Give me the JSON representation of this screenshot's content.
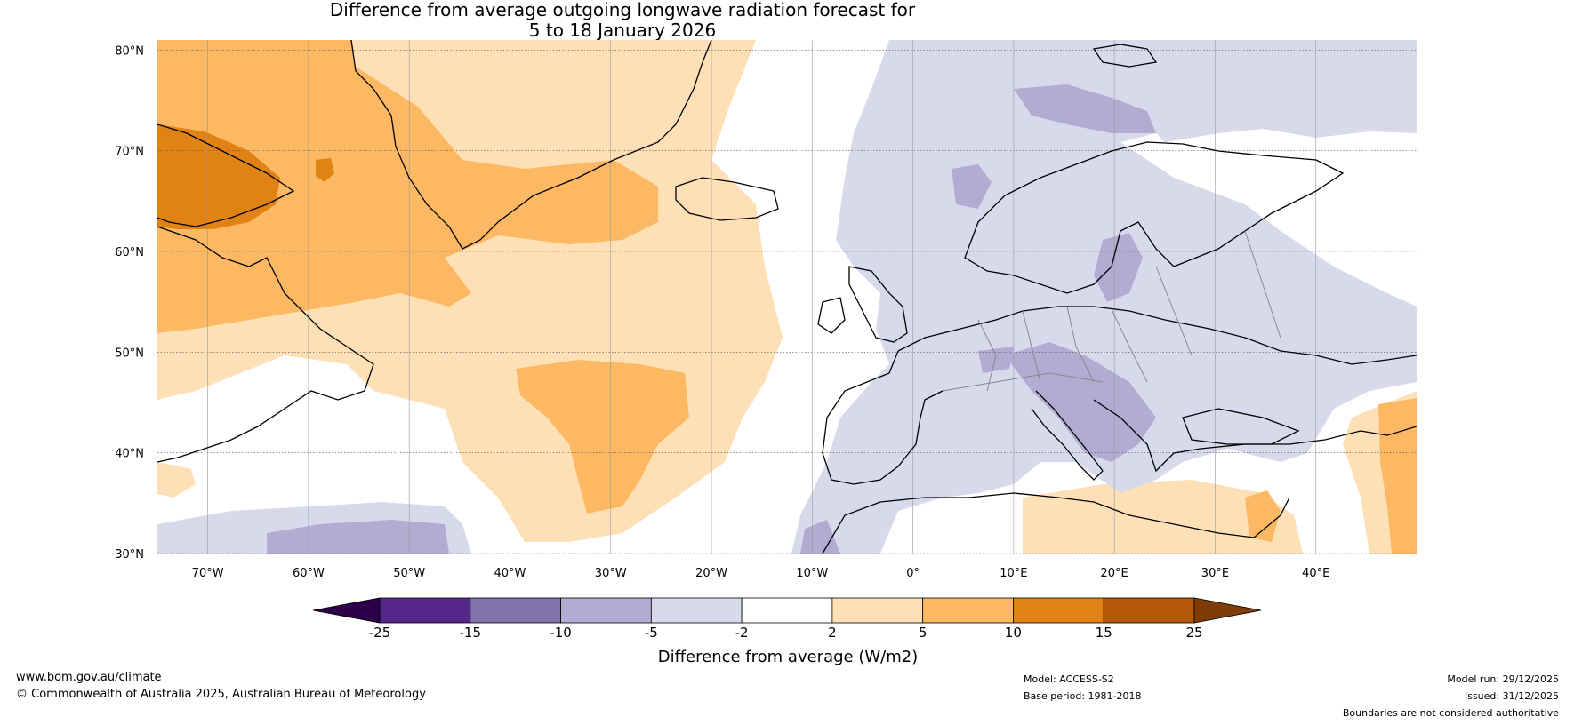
{
  "title": {
    "line1": "Difference from average outgoing longwave radiation forecast for",
    "line2": "5 to 18 January 2026"
  },
  "axes": {
    "lat_labels": [
      "80°N",
      "70°N",
      "60°N",
      "50°N",
      "40°N",
      "30°N"
    ],
    "lon_labels": [
      "70°W",
      "60°W",
      "50°W",
      "40°W",
      "30°W",
      "20°W",
      "10°W",
      "0°",
      "10°E",
      "20°E",
      "30°E",
      "40°E"
    ],
    "lat_values": [
      80,
      70,
      60,
      50,
      40,
      30
    ],
    "lon_values": [
      -70,
      -60,
      -50,
      -40,
      -30,
      -20,
      -10,
      0,
      10,
      20,
      30,
      40
    ],
    "lon_range": [
      -75,
      50
    ],
    "lat_range": [
      30,
      81
    ]
  },
  "legend": {
    "title": "Difference from average (W/m2)",
    "tick_labels": [
      "-25",
      "-15",
      "-10",
      "-5",
      "-2",
      "2",
      "5",
      "10",
      "15",
      "25"
    ],
    "bins": [
      {
        "range": "< -25",
        "color": "#2d004b"
      },
      {
        "range": "-25 to -15",
        "color": "#542788"
      },
      {
        "range": "-15 to -10",
        "color": "#8073ac"
      },
      {
        "range": "-10 to -5",
        "color": "#b2abd2"
      },
      {
        "range": "-5 to -2",
        "color": "#d8daeb"
      },
      {
        "range": "-2 to 2",
        "color": "#ffffff"
      },
      {
        "range": "2 to 5",
        "color": "#fee0b6"
      },
      {
        "range": "5 to 10",
        "color": "#fdb863"
      },
      {
        "range": "10 to 15",
        "color": "#e08214"
      },
      {
        "range": "15 to 25",
        "color": "#b35806"
      },
      {
        "range": "> 25",
        "color": "#7f3b08"
      }
    ]
  },
  "footer": {
    "website": "www.bom.gov.au/climate",
    "copyright": "© Commonwealth of Australia 2025, Australian Bureau of Meteorology",
    "model": "Model: ACCESS-S2",
    "base_period": "Base period: 1981-2018",
    "model_run": "Model run: 29/12/2025",
    "issued": "Issued: 31/12/2025",
    "disclaimer": "Boundaries are not considered authoritative"
  }
}
